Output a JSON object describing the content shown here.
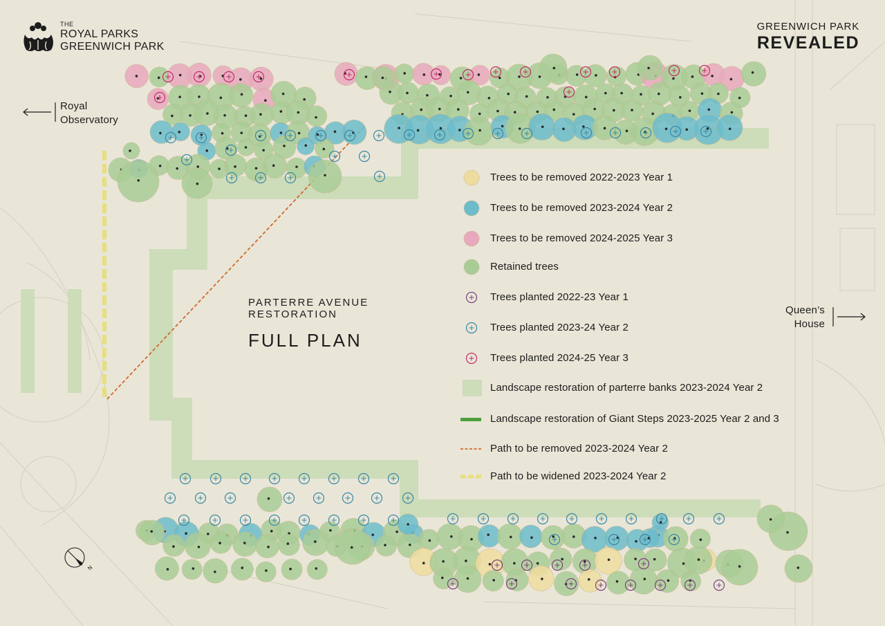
{
  "header": {
    "logo": {
      "the": "THE",
      "line1": "ROYAL PARKS",
      "line2": "GREENWICH PARK"
    },
    "brand": {
      "subtitle": "GREENWICH PARK",
      "title": "REVEALED"
    }
  },
  "navigation": {
    "royal_observatory": {
      "line1": "Royal",
      "line2": "Observatory",
      "direction": "left"
    },
    "queens_house": {
      "line1": "Queen’s",
      "line2": "House",
      "direction": "right"
    }
  },
  "plan_title": {
    "subtitle_line1": "PARTERRE AVENUE",
    "subtitle_line2": "RESTORATION",
    "main": "FULL PLAN"
  },
  "compass": {
    "label": "N",
    "icon": "north-arrow-icon"
  },
  "colors": {
    "background": "#e9e6d8",
    "retained": "#a9cc97",
    "remove_year1": "#eedc9f",
    "remove_year2": "#6cbccb",
    "remove_year3": "#e8a8bd",
    "plant_year1": "#7a3f7e",
    "plant_year2": "#3a87a3",
    "plant_year3": "#c42a6c",
    "banks": "#cddcb9",
    "giant_steps": "#4f9e3b",
    "path_removed": "#cf6a2a",
    "path_widened": "#e7de7e"
  },
  "legend": [
    {
      "key": "remove_y1",
      "symbol": "tree-yellow-icon",
      "label": "Trees to be removed 2022-2023 Year 1"
    },
    {
      "key": "remove_y2",
      "symbol": "tree-blue-icon",
      "label": "Trees to be removed 2023-2024 Year 2"
    },
    {
      "key": "remove_y3",
      "symbol": "tree-pink-icon",
      "label": "Trees to be removed 2024-2025 Year 3"
    },
    {
      "key": "retained",
      "symbol": "tree-green-icon",
      "label": "Retained trees"
    },
    {
      "key": "plant_y1",
      "symbol": "plant-purple-icon",
      "label": "Trees planted 2022-23 Year 1"
    },
    {
      "key": "plant_y2",
      "symbol": "plant-blue-icon",
      "label": "Trees planted 2023-24 Year 2"
    },
    {
      "key": "plant_y3",
      "symbol": "plant-magenta-icon",
      "label": "Trees planted 2024-25 Year 3"
    },
    {
      "key": "banks",
      "symbol": "banks-swatch-icon",
      "label": "Landscape restoration of parterre banks 2023-2024 Year 2"
    },
    {
      "key": "giant_steps",
      "symbol": "giant-steps-line-icon",
      "label": "Landscape restoration of Giant Steps 2023-2025 Year 2 and 3"
    },
    {
      "key": "path_removed",
      "symbol": "dashed-orange-line-icon",
      "label": "Path to be removed 2023-2024 Year 2"
    },
    {
      "key": "path_widened",
      "symbol": "dashed-yellow-line-icon",
      "label": "Path to be widened 2023-2024 Year 2"
    }
  ]
}
